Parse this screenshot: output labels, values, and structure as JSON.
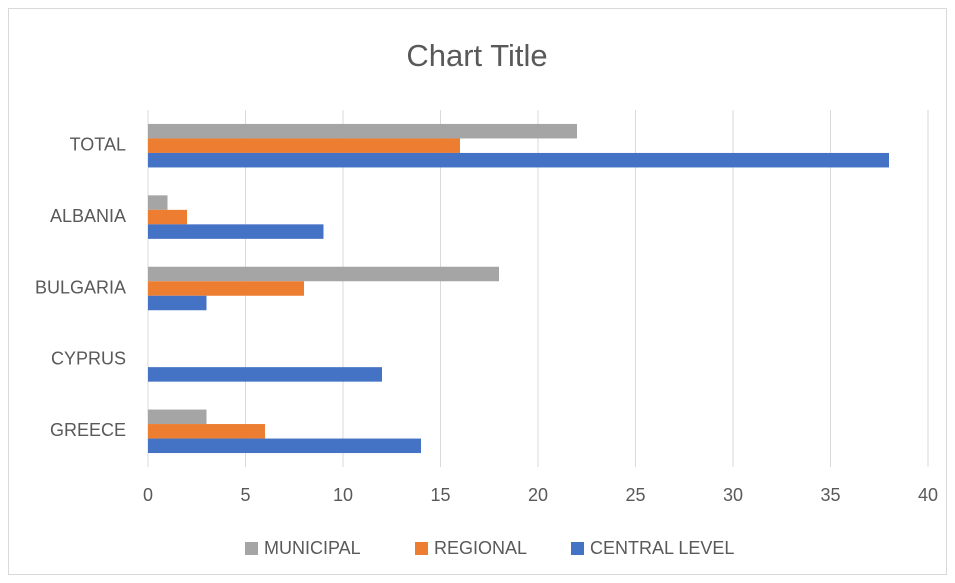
{
  "chart_data": {
    "type": "bar",
    "orientation": "horizontal",
    "title": "Chart Title",
    "categories": [
      "TOTAL",
      "ALBANIA",
      "BULGARIA",
      "CYPRUS",
      "GREECE"
    ],
    "series": [
      {
        "name": "MUNICIPAL",
        "color": "#a5a5a5",
        "values": [
          22,
          1,
          18,
          0,
          3
        ]
      },
      {
        "name": "REGIONAL",
        "color": "#ed7d31",
        "values": [
          16,
          2,
          8,
          0,
          6
        ]
      },
      {
        "name": "CENTRAL LEVEL",
        "color": "#4472c4",
        "values": [
          38,
          9,
          3,
          12,
          14
        ]
      }
    ],
    "xlim": [
      0,
      40
    ],
    "xticks": [
      0,
      5,
      10,
      15,
      20,
      25,
      30,
      35,
      40
    ],
    "grid": true,
    "legend": "bottom"
  }
}
